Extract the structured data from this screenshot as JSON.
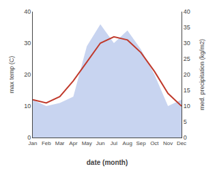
{
  "chart_data": {
    "type": "line",
    "categories": [
      "Jan",
      "Feb",
      "Mar",
      "Apr",
      "May",
      "Jun",
      "Jul",
      "Aug",
      "Sep",
      "Oct",
      "Nov",
      "Dec"
    ],
    "x_label": "date (month)",
    "y_label": "max temp (C)",
    "y2_label": "med. precipitation (kg/m2)",
    "series": [
      {
        "type": "area",
        "axis": "y2",
        "color": "#c8d4f0",
        "values": [
          12,
          10,
          11,
          13,
          29,
          36,
          30,
          34,
          28,
          20,
          10,
          12
        ]
      },
      {
        "type": "line",
        "color": "#c0392b",
        "values": [
          12,
          11,
          13,
          18,
          24,
          30,
          32,
          31,
          27,
          21,
          14,
          10
        ]
      }
    ],
    "ylim": [
      0,
      40
    ],
    "yticks": [
      0,
      10,
      20,
      30,
      40
    ],
    "y2lim": [
      0,
      40
    ],
    "y2ticks": [
      0,
      5,
      10,
      15,
      20,
      25,
      30,
      35,
      40
    ],
    "grid": false
  }
}
